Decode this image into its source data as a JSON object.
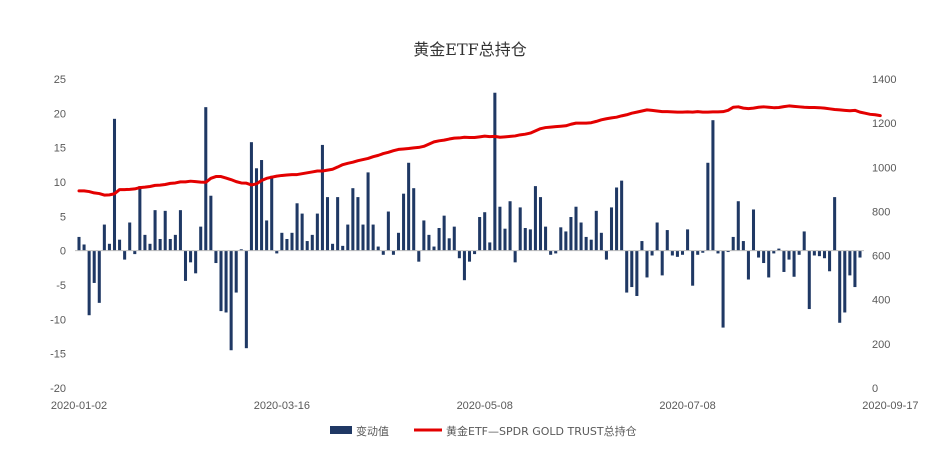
{
  "chart_data": {
    "type": "bar+line",
    "title": "黄金ETF总持仓",
    "colors": {
      "bar": "#1f3864",
      "line": "#e30000"
    },
    "left_axis": {
      "min": -20,
      "max": 25,
      "ticks": [
        "25",
        "20",
        "15",
        "10",
        "5",
        "0",
        "-5",
        "-10",
        "-15",
        "-20"
      ]
    },
    "right_axis": {
      "min": 0,
      "max": 1400,
      "ticks": [
        "1400",
        "1200",
        "1000",
        "800",
        "600",
        "400",
        "200",
        "0"
      ]
    },
    "x_tick_labels": [
      {
        "label": "2020-01-02",
        "index": 0
      },
      {
        "label": "2020-03-16",
        "index": 40
      },
      {
        "label": "2020-05-08",
        "index": 80
      },
      {
        "label": "2020-07-08",
        "index": 120
      },
      {
        "label": "2020-09-17",
        "index": 160
      }
    ],
    "legend": {
      "bar": "变动值",
      "line": "黄金ETF—SPDR GOLD TRUST总持仓"
    },
    "series": [
      {
        "name": "变动值",
        "type": "bar",
        "axis": "left",
        "values": [
          2.0,
          0.9,
          -9.4,
          -4.7,
          -7.6,
          3.8,
          1.0,
          19.2,
          1.6,
          -1.3,
          4.1,
          -0.5,
          9.4,
          2.3,
          1.0,
          5.9,
          1.7,
          5.8,
          1.7,
          2.3,
          5.9,
          -4.4,
          -1.7,
          -3.3,
          3.5,
          20.9,
          8.0,
          -1.8,
          -8.8,
          -9.0,
          -14.5,
          -6.1,
          0.2,
          -14.2,
          15.8,
          12.0,
          13.2,
          4.4,
          10.9,
          -0.4,
          2.6,
          1.7,
          2.6,
          6.9,
          5.4,
          1.4,
          2.3,
          5.4,
          15.4,
          7.8,
          1.0,
          7.8,
          0.7,
          3.8,
          9.1,
          7.8,
          3.8,
          11.4,
          3.8,
          0.6,
          -0.6,
          5.7,
          -0.6,
          2.6,
          8.3,
          12.8,
          9.1,
          -1.6,
          4.4,
          2.3,
          0.6,
          3.3,
          5.1,
          1.8,
          3.5,
          -1.1,
          -4.3,
          -1.6,
          -0.5,
          4.9,
          5.6,
          1.2,
          23.0,
          6.4,
          3.2,
          7.2,
          -1.7,
          6.3,
          3.3,
          3.1,
          9.4,
          7.8,
          3.5,
          -0.6,
          -0.4,
          3.4,
          2.8,
          4.9,
          6.4,
          4.1,
          2.0,
          1.6,
          5.8,
          2.6,
          -1.3,
          6.3,
          9.2,
          10.2,
          -6.1,
          -5.3,
          -6.6,
          1.4,
          -3.9,
          -0.7,
          4.1,
          -3.6,
          3.0,
          -0.7,
          -0.9,
          -0.6,
          3.1,
          -5.1,
          -0.6,
          -0.3,
          12.8,
          19.0,
          -0.4,
          -11.2,
          -0.2,
          2.0,
          7.2,
          1.4,
          -4.2,
          6.0,
          -1.0,
          -1.8,
          -3.9,
          -0.4,
          0.3,
          -3.1,
          -1.3,
          -3.8,
          -0.6,
          2.8,
          -8.5,
          -0.7,
          -0.8,
          -1.1,
          -3.0,
          7.8,
          -10.5,
          -9.0,
          -3.6,
          -5.3,
          -1.0
        ]
      },
      {
        "name": "黄金ETF—SPDR GOLD TRUST总持仓",
        "type": "line",
        "axis": "right",
        "values": [
          893,
          893,
          890,
          884,
          881,
          874,
          875,
          880,
          899,
          899,
          900,
          902,
          908,
          910,
          913,
          918,
          919,
          922,
          927,
          929,
          934,
          934,
          937,
          935,
          933,
          932,
          950,
          958,
          958,
          951,
          944,
          935,
          929,
          928,
          920,
          925,
          940,
          950,
          955,
          960,
          963,
          965,
          967,
          967,
          971,
          975,
          979,
          983,
          983,
          987,
          991,
          1001,
          1012,
          1018,
          1023,
          1030,
          1035,
          1040,
          1048,
          1054,
          1062,
          1068,
          1075,
          1081,
          1083,
          1085,
          1088,
          1090,
          1095,
          1105,
          1115,
          1120,
          1123,
          1128,
          1132,
          1133,
          1136,
          1135,
          1135,
          1138,
          1141,
          1139,
          1140,
          1136,
          1138,
          1140,
          1142,
          1147,
          1150,
          1155,
          1165,
          1175,
          1180,
          1182,
          1184,
          1186,
          1188,
          1195,
          1200,
          1200,
          1200,
          1202,
          1208,
          1215,
          1220,
          1224,
          1227,
          1233,
          1238,
          1245,
          1250,
          1255,
          1260,
          1258,
          1255,
          1252,
          1252,
          1251,
          1250,
          1250,
          1251,
          1250,
          1252,
          1250,
          1250,
          1251,
          1251,
          1252,
          1258,
          1272,
          1274,
          1268,
          1266,
          1268,
          1272,
          1274,
          1272,
          1270,
          1271,
          1275,
          1278,
          1276,
          1274,
          1272,
          1271,
          1271,
          1270,
          1268,
          1265,
          1262,
          1260,
          1258,
          1256,
          1258,
          1250,
          1245,
          1240,
          1238,
          1234
        ]
      }
    ]
  }
}
